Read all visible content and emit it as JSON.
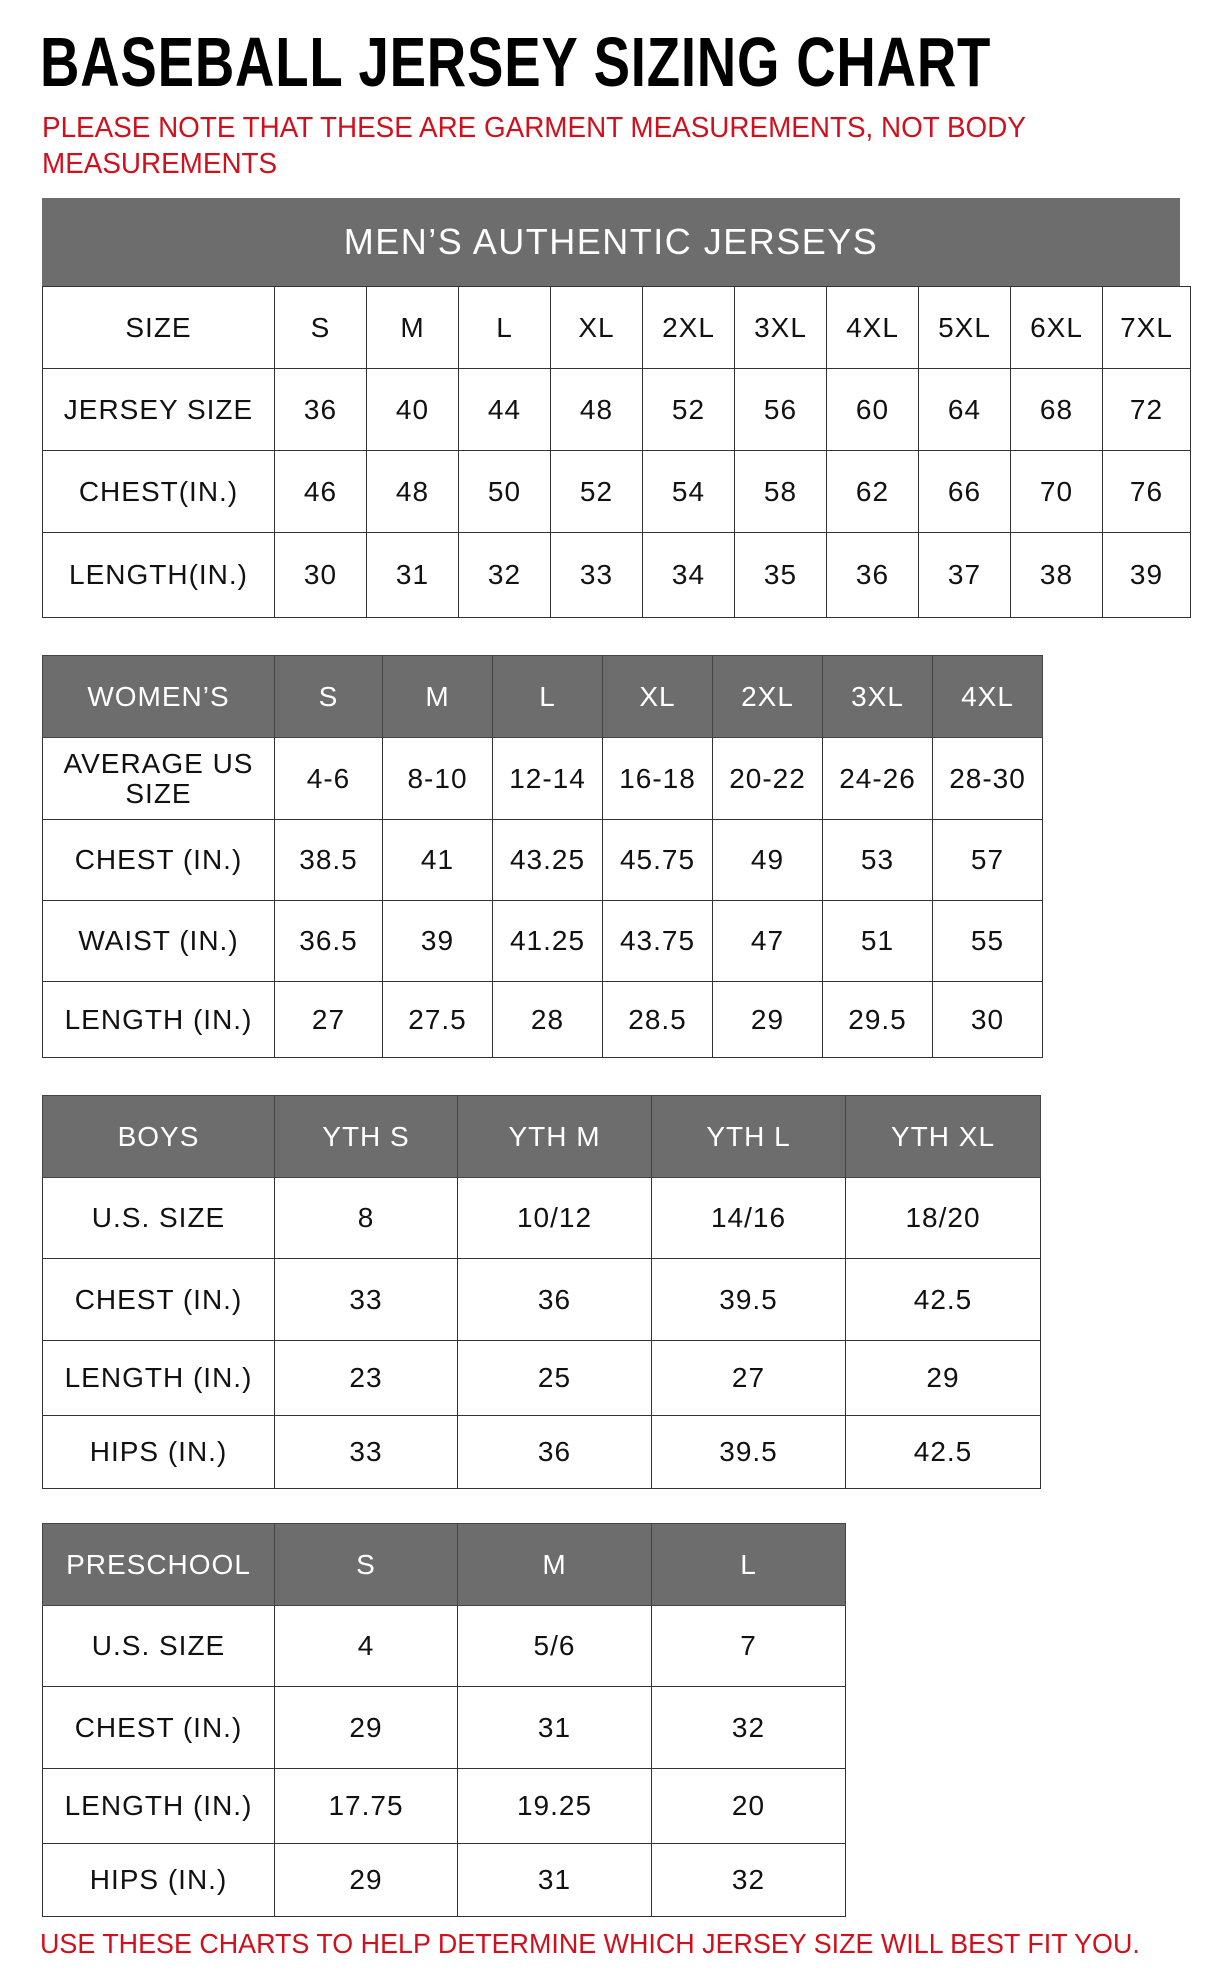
{
  "title": "BASEBALL JERSEY SIZING CHART",
  "note": "PLEASE NOTE THAT THESE ARE GARMENT MEASUREMENTS, NOT BODY MEASUREMENTS",
  "footer": "USE THESE CHARTS TO HELP DETERMINE WHICH JERSEY SIZE WILL BEST FIT YOU.",
  "colors": {
    "header_bg": "#6d6d6d",
    "note_red": "#d0101c"
  },
  "tables": [
    {
      "id": "mens",
      "banner": "MEN’S AUTHENTIC JERSEYS",
      "header_style": "plain",
      "header": [
        "SIZE",
        "S",
        "M",
        "L",
        "XL",
        "2XL",
        "3XL",
        "4XL",
        "5XL",
        "6XL",
        "7XL"
      ],
      "rows": [
        [
          "JERSEY SIZE",
          "36",
          "40",
          "44",
          "48",
          "52",
          "56",
          "60",
          "64",
          "68",
          "72"
        ],
        [
          "CHEST(IN.)",
          "46",
          "48",
          "50",
          "52",
          "54",
          "58",
          "62",
          "66",
          "70",
          "76"
        ],
        [
          "LENGTH(IN.)",
          "30",
          "31",
          "32",
          "33",
          "34",
          "35",
          "36",
          "37",
          "38",
          "39"
        ]
      ]
    },
    {
      "id": "womens",
      "header_style": "gray",
      "header": [
        "WOMEN’S",
        "S",
        "M",
        "L",
        "XL",
        "2XL",
        "3XL",
        "4XL"
      ],
      "rows": [
        [
          "AVERAGE US SIZE",
          "4-6",
          "8-10",
          "12-14",
          "16-18",
          "20-22",
          "24-26",
          "28-30"
        ],
        [
          "CHEST (IN.)",
          "38.5",
          "41",
          "43.25",
          "45.75",
          "49",
          "53",
          "57"
        ],
        [
          "WAIST (IN.)",
          "36.5",
          "39",
          "41.25",
          "43.75",
          "47",
          "51",
          "55"
        ],
        [
          "LENGTH (IN.)",
          "27",
          "27.5",
          "28",
          "28.5",
          "29",
          "29.5",
          "30"
        ]
      ]
    },
    {
      "id": "boys",
      "header_style": "gray",
      "header": [
        "BOYS",
        "YTH S",
        "YTH M",
        "YTH L",
        "YTH XL"
      ],
      "rows": [
        [
          "U.S. SIZE",
          "8",
          "10/12",
          "14/16",
          "18/20"
        ],
        [
          "CHEST (IN.)",
          "33",
          "36",
          "39.5",
          "42.5"
        ],
        [
          "LENGTH (IN.)",
          "23",
          "25",
          "27",
          "29"
        ],
        [
          "HIPS (IN.)",
          "33",
          "36",
          "39.5",
          "42.5"
        ]
      ]
    },
    {
      "id": "preschool",
      "header_style": "gray",
      "header": [
        "PRESCHOOL",
        "S",
        "M",
        "L"
      ],
      "rows": [
        [
          "U.S. SIZE",
          "4",
          "5/6",
          "7"
        ],
        [
          "CHEST (IN.)",
          "29",
          "31",
          "32"
        ],
        [
          "LENGTH (IN.)",
          "17.75",
          "19.25",
          "20"
        ],
        [
          "HIPS (IN.)",
          "29",
          "31",
          "32"
        ]
      ]
    }
  ]
}
